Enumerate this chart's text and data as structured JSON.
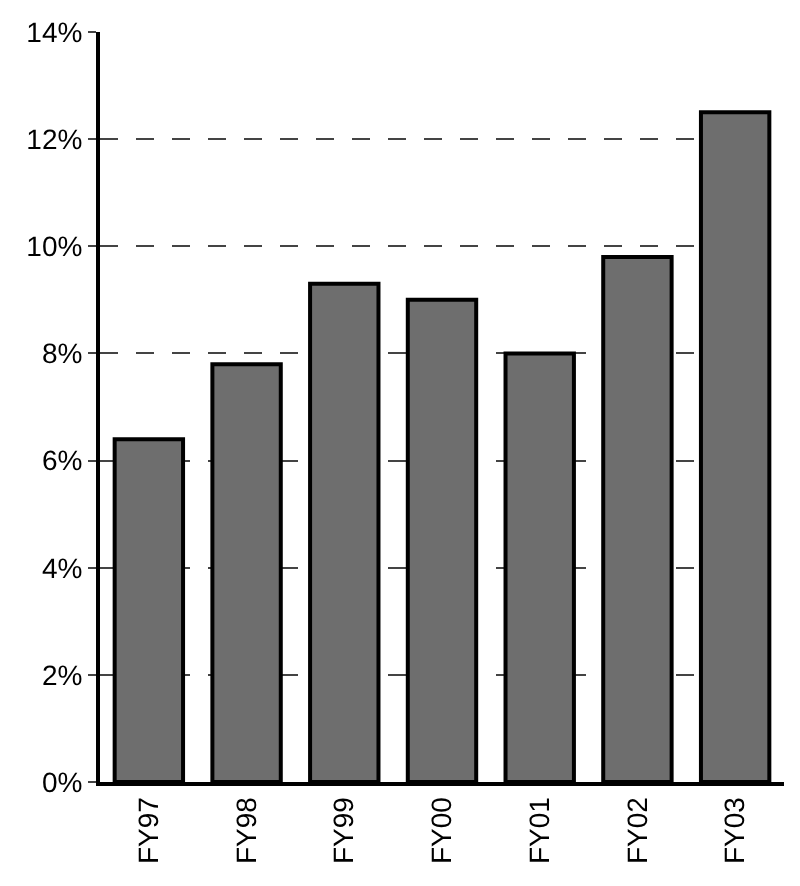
{
  "chart_data": {
    "type": "bar",
    "categories": [
      "FY97",
      "FY98",
      "FY99",
      "FY00",
      "FY01",
      "FY02",
      "FY03"
    ],
    "values": [
      6.4,
      7.8,
      9.3,
      9.0,
      8.0,
      9.8,
      12.5
    ],
    "color": "#6e6e6e",
    "ylim": [
      0,
      14
    ],
    "yticks": [
      {
        "value": 0,
        "label": "0%"
      },
      {
        "value": 2,
        "label": "2%"
      },
      {
        "value": 4,
        "label": "4%"
      },
      {
        "value": 6,
        "label": "6%"
      },
      {
        "value": 8,
        "label": "8%"
      },
      {
        "value": 10,
        "label": "10%"
      },
      {
        "value": 12,
        "label": "12%"
      },
      {
        "value": 14,
        "label": "14%"
      }
    ],
    "grid": "y"
  }
}
